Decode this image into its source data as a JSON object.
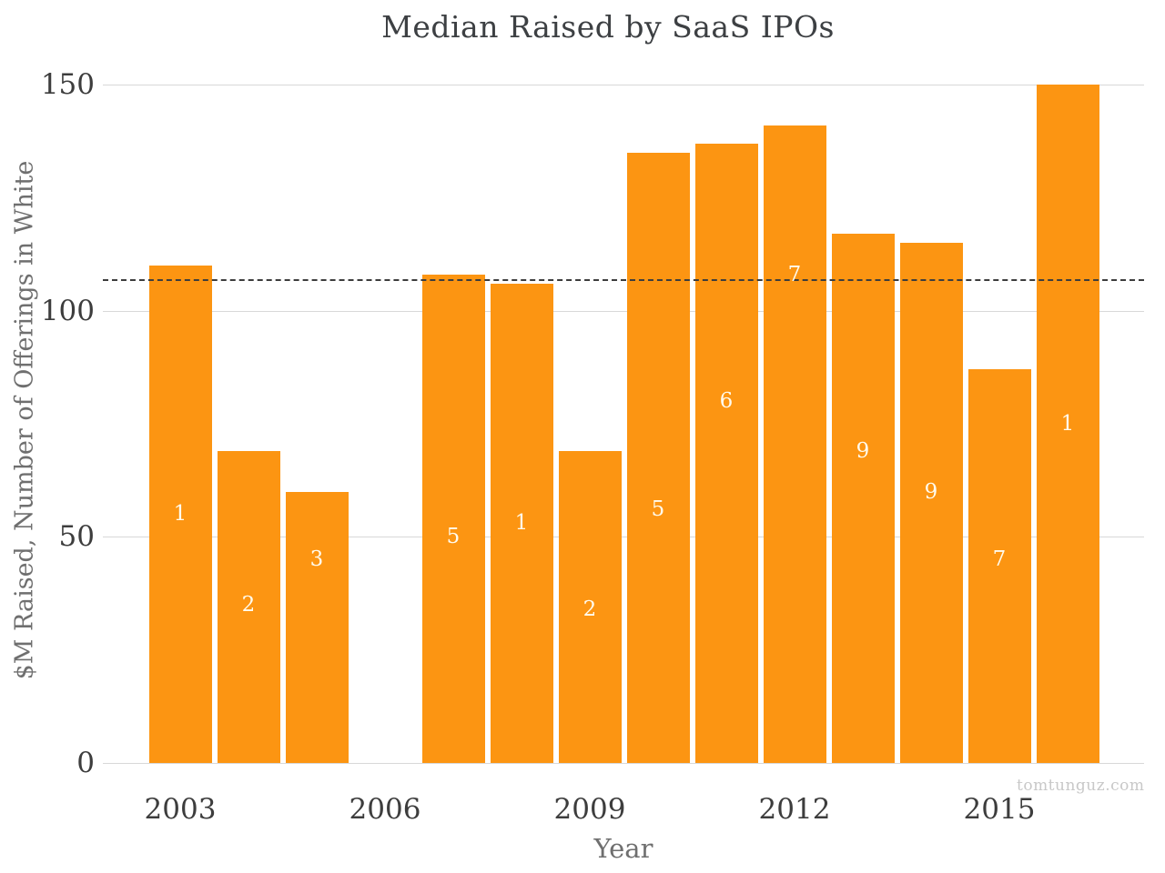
{
  "chart_data": {
    "type": "bar",
    "title": "Median Raised by SaaS IPOs",
    "xlabel": "Year",
    "ylabel": "$M Raised, Number of Offerings in White",
    "watermark": "tomtunguz.com",
    "ylim": [
      0,
      150
    ],
    "yticks": [
      0,
      50,
      100,
      150
    ],
    "xticks": [
      2003,
      2006,
      2009,
      2012,
      2015
    ],
    "x_range": [
      2003,
      2016
    ],
    "grid": "horizontal-major-only",
    "legend": "none",
    "dashed_reference_line_y": 107,
    "bars": [
      {
        "year": 2003,
        "median_raised_m": 110,
        "offerings": "1",
        "label_y": 55
      },
      {
        "year": 2004,
        "median_raised_m": 69,
        "offerings": "2",
        "label_y": 35
      },
      {
        "year": 2005,
        "median_raised_m": 60,
        "offerings": "3",
        "label_y": 45
      },
      {
        "year": 2007,
        "median_raised_m": 108,
        "offerings": "5",
        "label_y": 50
      },
      {
        "year": 2008,
        "median_raised_m": 106,
        "offerings": "1",
        "label_y": 53
      },
      {
        "year": 2009,
        "median_raised_m": 69,
        "offerings": "2",
        "label_y": 34
      },
      {
        "year": 2010,
        "median_raised_m": 135,
        "offerings": "5",
        "label_y": 56
      },
      {
        "year": 2011,
        "median_raised_m": 137,
        "offerings": "6",
        "label_y": 80
      },
      {
        "year": 2012,
        "median_raised_m": 141,
        "offerings": "7",
        "label_y": 108
      },
      {
        "year": 2013,
        "median_raised_m": 117,
        "offerings": "9",
        "label_y": 69
      },
      {
        "year": 2014,
        "median_raised_m": 115,
        "offerings": "9",
        "label_y": 60
      },
      {
        "year": 2015,
        "median_raised_m": 87,
        "offerings": "7",
        "label_y": 45
      },
      {
        "year": 2016,
        "median_raised_m": 150,
        "offerings": "1",
        "label_y": 75
      }
    ],
    "colors": {
      "bar": "#FC9512",
      "bar_label": "#FFFBEE",
      "title": "#3D4043",
      "tick_label": "#3D3D3D",
      "axis_title": "#6F6F6F",
      "gridline": "#D8D8D8",
      "dashed_line": "#3D3D3D",
      "watermark": "#C8C8C8",
      "background": "#FFFFFF"
    }
  }
}
